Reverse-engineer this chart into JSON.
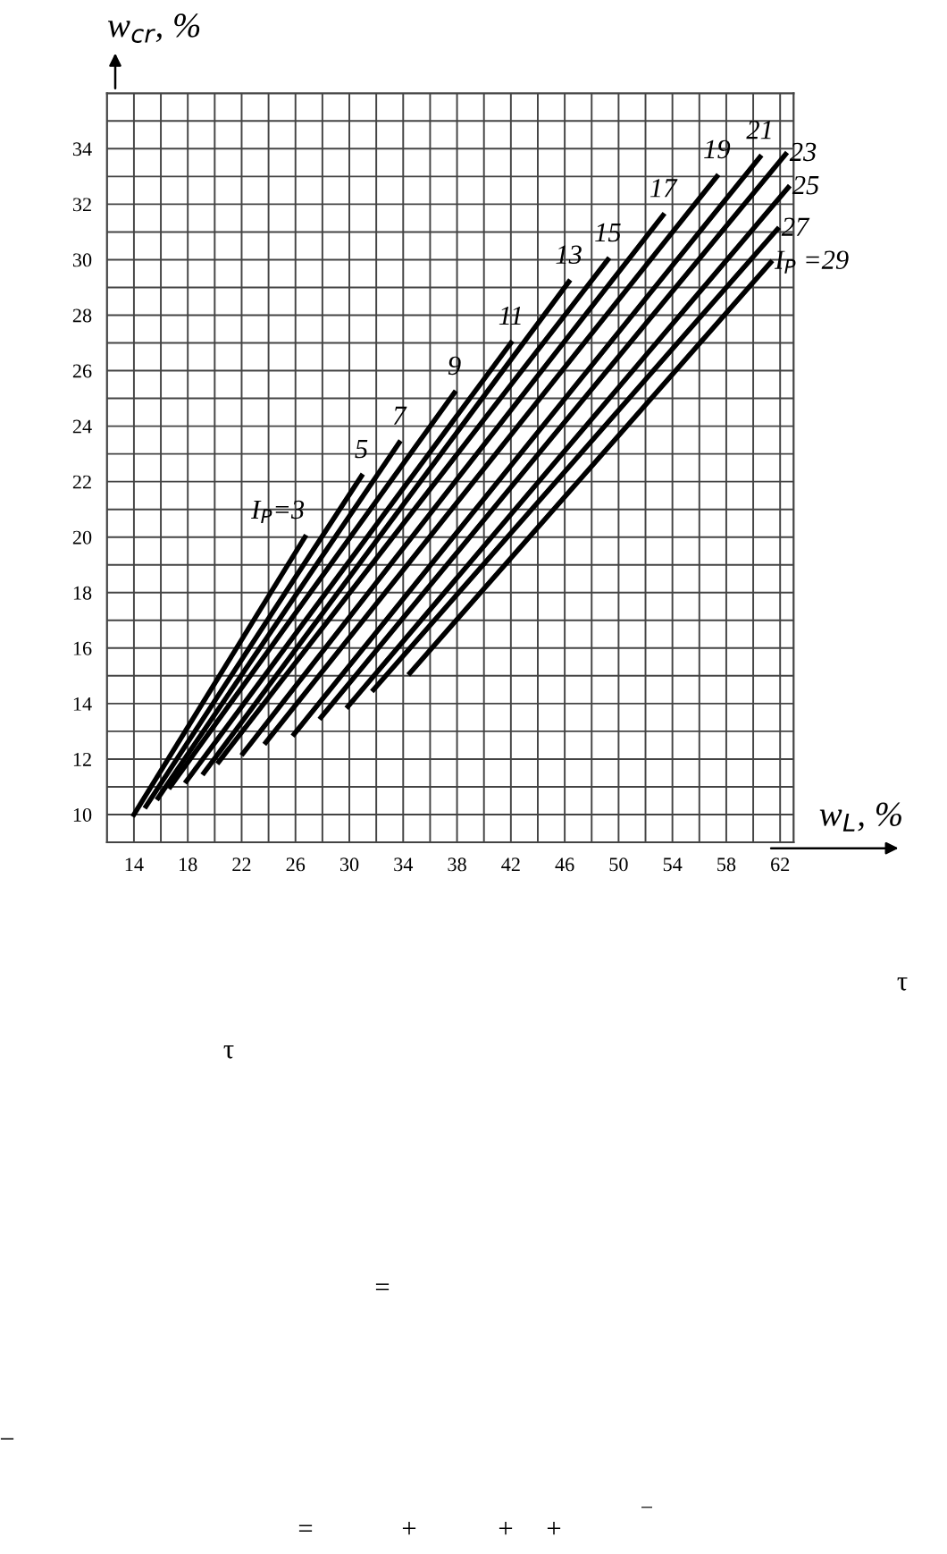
{
  "chart_data": {
    "type": "line",
    "xlabel": "w$_{L}$, %",
    "ylabel": "w$_{cr}$, %",
    "xlim": [
      12,
      63
    ],
    "ylim": [
      9,
      36
    ],
    "xticks": [
      14,
      {
        "value": 16,
        "label": null
      },
      18,
      {
        "value": 20,
        "label": null
      },
      22,
      {
        "value": 24,
        "label": null
      },
      26,
      {
        "value": 28,
        "label": null
      },
      30,
      {
        "value": 32,
        "label": null
      },
      34,
      {
        "value": 36,
        "label": null
      },
      38,
      {
        "value": 40,
        "label": null
      },
      42,
      {
        "value": 44,
        "label": null
      },
      46,
      {
        "value": 48,
        "label": null
      },
      50,
      {
        "value": 52,
        "label": null
      },
      54,
      {
        "value": 56,
        "label": null
      },
      58,
      {
        "value": 60,
        "label": null
      },
      62
    ],
    "yticks": [
      10,
      {
        "value": 11,
        "label": null
      },
      12,
      {
        "value": 13,
        "label": null
      },
      14,
      {
        "value": 15,
        "label": null
      },
      16,
      {
        "value": 17,
        "label": null
      },
      18,
      {
        "value": 19,
        "label": null
      },
      20,
      {
        "value": 21,
        "label": null
      },
      22,
      {
        "value": 23,
        "label": null
      },
      24,
      {
        "value": 25,
        "label": null
      },
      26,
      {
        "value": 27,
        "label": null
      },
      28,
      {
        "value": 29,
        "label": null
      },
      30,
      {
        "value": 31,
        "label": null
      },
      32,
      {
        "value": 33,
        "label": null
      },
      34,
      {
        "value": 35,
        "label": null
      }
    ],
    "grid": true,
    "legend": false,
    "marker": "none",
    "line_style": "solid",
    "series": [
      {
        "name": "I$_{P}$=3",
        "color": "#000000",
        "x": [
          14,
          26.7
        ],
        "values": [
          10,
          20
        ]
      },
      {
        "name": "5",
        "color": "#000000",
        "x": [
          14.9,
          30.9
        ],
        "values": [
          10.3,
          22.2
        ]
      },
      {
        "name": "7",
        "color": "#000000",
        "x": [
          15.8,
          33.7
        ],
        "values": [
          10.6,
          23.4
        ]
      },
      {
        "name": "9",
        "color": "#000000",
        "x": [
          16.7,
          37.8
        ],
        "values": [
          11,
          25.2
        ]
      },
      {
        "name": "11",
        "color": "#000000",
        "x": [
          17.9,
          42
        ],
        "values": [
          11.2,
          27
        ]
      },
      {
        "name": "13",
        "color": "#000000",
        "x": [
          19.2,
          46.3
        ],
        "values": [
          11.5,
          29.2
        ]
      },
      {
        "name": "15",
        "color": "#000000",
        "x": [
          20.3,
          49.2
        ],
        "values": [
          11.9,
          30
        ]
      },
      {
        "name": "17",
        "color": "#000000",
        "x": [
          22.1,
          53.3
        ],
        "values": [
          12.2,
          31.6
        ]
      },
      {
        "name": "19",
        "color": "#000000",
        "x": [
          23.8,
          57.3
        ],
        "values": [
          12.6,
          33
        ]
      },
      {
        "name": "21",
        "color": "#000000",
        "x": [
          25.9,
          60.5
        ],
        "values": [
          12.9,
          33.7
        ]
      },
      {
        "name": "23",
        "color": "#000000",
        "x": [
          27.9,
          62.4
        ],
        "values": [
          13.5,
          33.8
        ]
      },
      {
        "name": "25",
        "color": "#000000",
        "x": [
          29.9,
          62.6
        ],
        "values": [
          13.9,
          32.6
        ]
      },
      {
        "name": "27",
        "color": "#000000",
        "x": [
          31.8,
          61.8
        ],
        "values": [
          14.5,
          31.1
        ]
      },
      {
        "name": "I$_{P}$ =29",
        "color": "#000000",
        "x": [
          34.5,
          61.3
        ],
        "values": [
          15.1,
          29.9
        ]
      }
    ],
    "annotations": [
      "τ",
      "τ",
      "=",
      "−",
      "=",
      "+",
      "+",
      "+",
      "‾"
    ]
  }
}
